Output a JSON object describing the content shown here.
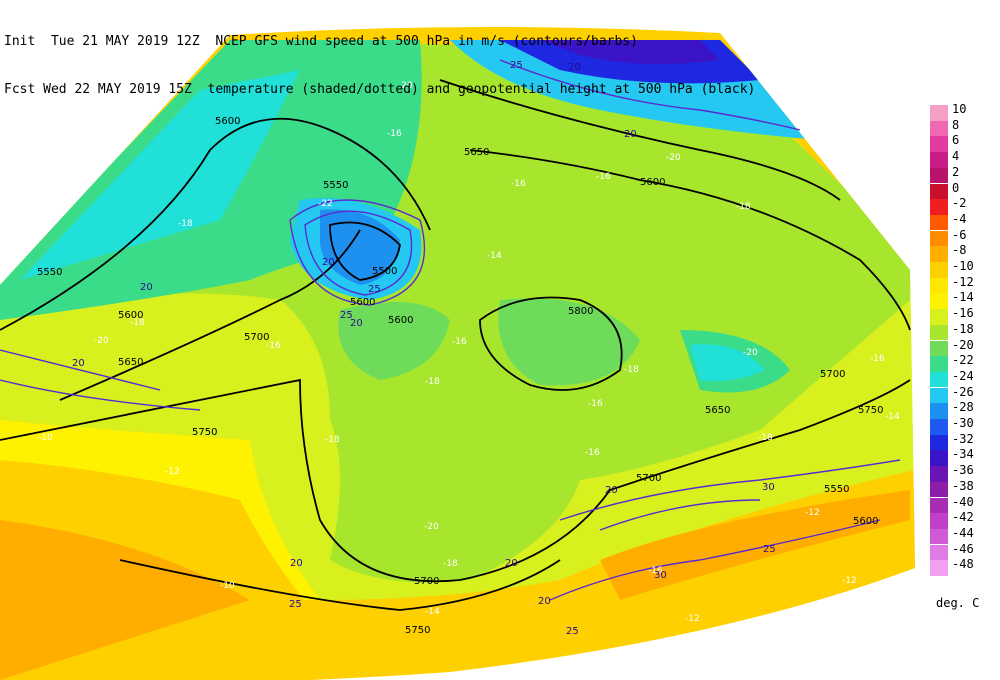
{
  "header": {
    "line1": "Init  Tue 21 MAY 2019 12Z  NCEP GFS wind speed at 500 hPa in m/s (contours/barbs)",
    "line2": "Fcst Wed 22 MAY 2019 15Z  temperature (shaded/dotted) and geopotential height at 500 hPa (black)"
  },
  "legend": {
    "unit": "deg. C",
    "entries": [
      {
        "label": "10",
        "color": "#f59fc8"
      },
      {
        "label": "8",
        "color": "#f067b2"
      },
      {
        "label": "6",
        "color": "#e23a9e"
      },
      {
        "label": "4",
        "color": "#c81d86"
      },
      {
        "label": "2",
        "color": "#b8146b"
      },
      {
        "label": "0",
        "color": "#c8102e"
      },
      {
        "label": "-2",
        "color": "#f01e1e"
      },
      {
        "label": "-4",
        "color": "#ff5a00"
      },
      {
        "label": "-6",
        "color": "#ff8c00"
      },
      {
        "label": "-8",
        "color": "#ffae00"
      },
      {
        "label": "-10",
        "color": "#ffd000"
      },
      {
        "label": "-12",
        "color": "#ffe800"
      },
      {
        "label": "-14",
        "color": "#fff200"
      },
      {
        "label": "-16",
        "color": "#d8f01e"
      },
      {
        "label": "-18",
        "color": "#a8e62e"
      },
      {
        "label": "-20",
        "color": "#6edc5a"
      },
      {
        "label": "-22",
        "color": "#3adc8a"
      },
      {
        "label": "-24",
        "color": "#20e0d8"
      },
      {
        "label": "-26",
        "color": "#24c8f0"
      },
      {
        "label": "-28",
        "color": "#1e90f0"
      },
      {
        "label": "-30",
        "color": "#1e5af0"
      },
      {
        "label": "-32",
        "color": "#1e28e0"
      },
      {
        "label": "-34",
        "color": "#3c14c8"
      },
      {
        "label": "-36",
        "color": "#6a14b4"
      },
      {
        "label": "-38",
        "color": "#8c1ea8"
      },
      {
        "label": "-40",
        "color": "#a82cb4"
      },
      {
        "label": "-42",
        "color": "#c040c8"
      },
      {
        "label": "-44",
        "color": "#d05ad6"
      },
      {
        "label": "-46",
        "color": "#e07ae4"
      },
      {
        "label": "-48",
        "color": "#f0a0f0"
      }
    ]
  },
  "map_labels": {
    "heights": [
      "5600",
      "5550",
      "5650",
      "5600",
      "5500",
      "5600",
      "5550",
      "5700",
      "5600",
      "5800",
      "5650",
      "5700",
      "5750",
      "5700",
      "5650",
      "5750",
      "5700",
      "5750",
      "5600",
      "5550",
      "5600"
    ],
    "temps": [
      "-22",
      "-20",
      "-16",
      "-18",
      "-20",
      "-18",
      "-16",
      "-16",
      "-14",
      "-16",
      "-18",
      "-16",
      "-18",
      "-20",
      "-18",
      "-20",
      "-16",
      "-16",
      "-18",
      "-20",
      "-18",
      "-16",
      "-12",
      "-10",
      "-10",
      "-12",
      "-14",
      "-12",
      "-18",
      "-14",
      "-12",
      "-16"
    ],
    "winds": [
      "25",
      "20",
      "20",
      "20",
      "20",
      "25",
      "20",
      "25",
      "20",
      "25",
      "20",
      "30",
      "25",
      "30",
      "25",
      "20",
      "20",
      "20"
    ]
  }
}
